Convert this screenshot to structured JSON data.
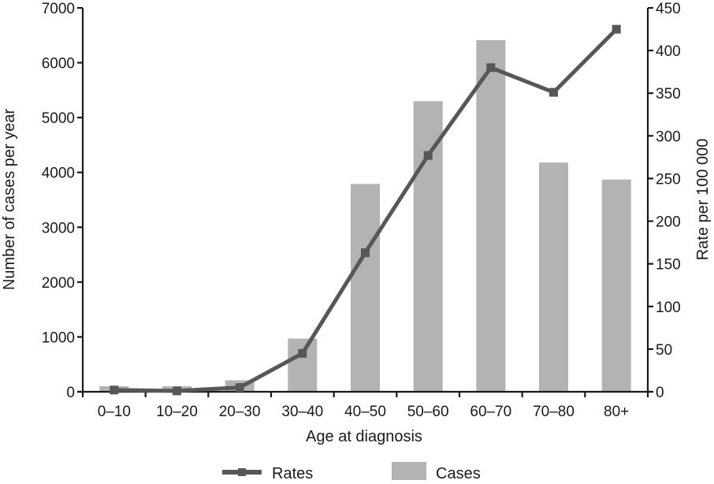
{
  "chart_data": {
    "type": "bar",
    "categories": [
      "0–10",
      "10–20",
      "20–30",
      "30–40",
      "40–50",
      "50–60",
      "60–70",
      "70–80",
      "80+"
    ],
    "series": [
      {
        "name": "Cases",
        "type": "bar",
        "axis": "left",
        "values": [
          100,
          100,
          210,
          970,
          3790,
          5300,
          6410,
          4180,
          3870
        ]
      },
      {
        "name": "Rates",
        "type": "line",
        "axis": "right",
        "values": [
          2,
          1,
          5,
          45,
          163,
          277,
          380,
          351,
          425
        ]
      }
    ],
    "xlabel": "Age at diagnosis",
    "ylabel": "Number of cases per year",
    "y2label": "Rate per 100 000",
    "ylim": [
      0,
      7000
    ],
    "y2lim": [
      0,
      450
    ],
    "yticks": [
      "0",
      "1000",
      "2000",
      "3000",
      "4000",
      "5000",
      "6000",
      "7000"
    ],
    "y2ticks": [
      "0",
      "50",
      "100",
      "150",
      "200",
      "250",
      "300",
      "350",
      "400",
      "450"
    ],
    "grid": false,
    "legend_position": "bottom",
    "colors": {
      "bar": "#b3b3b3",
      "line": "#575757",
      "axis": "#1a1a1a"
    }
  }
}
